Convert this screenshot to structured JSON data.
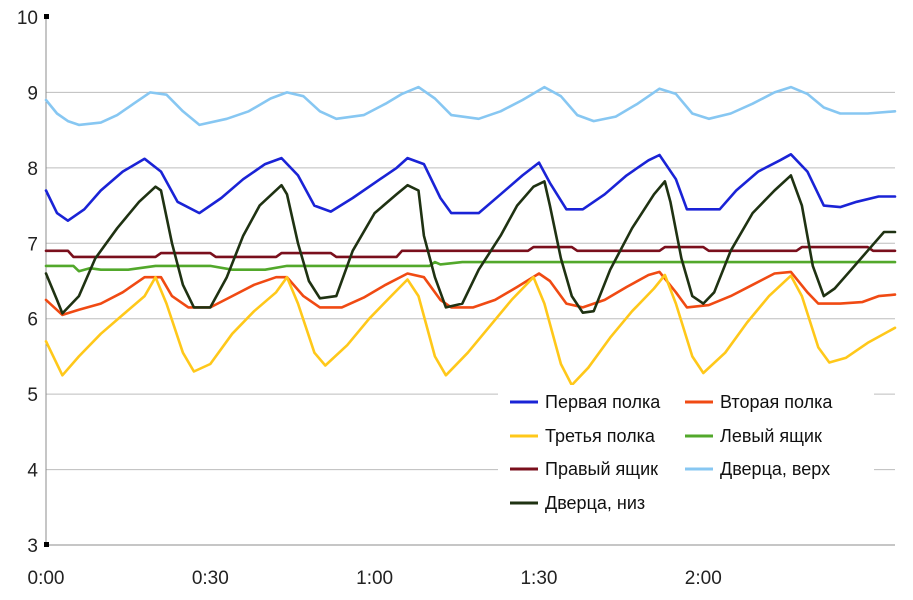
{
  "chart_data": {
    "type": "line",
    "title": "",
    "xlabel": "",
    "ylabel": "",
    "ylim": [
      3,
      10
    ],
    "y_ticks": [
      "3",
      "4",
      "5",
      "6",
      "7",
      "8",
      "9",
      "10"
    ],
    "xlim_minutes": [
      0,
      155
    ],
    "x_ticks": [
      {
        "label": "0:00",
        "minutes": 0
      },
      {
        "label": "0:30",
        "minutes": 30
      },
      {
        "label": "1:00",
        "minutes": 60
      },
      {
        "label": "1:30",
        "minutes": 90
      },
      {
        "label": "2:00",
        "minutes": 120
      }
    ],
    "grid": "horizontal",
    "legend_position": "bottom-right",
    "series": [
      {
        "name": "Первая полка",
        "color": "#1a23d6",
        "points": [
          [
            0,
            7.7
          ],
          [
            2,
            7.4
          ],
          [
            4,
            7.3
          ],
          [
            7,
            7.45
          ],
          [
            10,
            7.7
          ],
          [
            14,
            7.95
          ],
          [
            18,
            8.12
          ],
          [
            21,
            7.95
          ],
          [
            24,
            7.55
          ],
          [
            28,
            7.4
          ],
          [
            32,
            7.6
          ],
          [
            36,
            7.85
          ],
          [
            40,
            8.05
          ],
          [
            43,
            8.13
          ],
          [
            46,
            7.9
          ],
          [
            49,
            7.5
          ],
          [
            52,
            7.42
          ],
          [
            56,
            7.6
          ],
          [
            60,
            7.8
          ],
          [
            64,
            8.0
          ],
          [
            66,
            8.13
          ],
          [
            69,
            8.05
          ],
          [
            72,
            7.6
          ],
          [
            74,
            7.4
          ],
          [
            79,
            7.4
          ],
          [
            83,
            7.65
          ],
          [
            87,
            7.9
          ],
          [
            90,
            8.07
          ],
          [
            92,
            7.8
          ],
          [
            95,
            7.45
          ],
          [
            98,
            7.45
          ],
          [
            102,
            7.65
          ],
          [
            106,
            7.9
          ],
          [
            110,
            8.1
          ],
          [
            112,
            8.17
          ],
          [
            115,
            7.85
          ],
          [
            117,
            7.45
          ],
          [
            123,
            7.45
          ],
          [
            126,
            7.7
          ],
          [
            130,
            7.95
          ],
          [
            134,
            8.1
          ],
          [
            136,
            8.18
          ],
          [
            139,
            7.95
          ],
          [
            142,
            7.5
          ],
          [
            145,
            7.48
          ],
          [
            148,
            7.55
          ],
          [
            152,
            7.62
          ],
          [
            155,
            7.62
          ]
        ]
      },
      {
        "name": "Вторая полка",
        "color": "#f04a13",
        "points": [
          [
            0,
            6.25
          ],
          [
            3,
            6.05
          ],
          [
            6,
            6.12
          ],
          [
            10,
            6.2
          ],
          [
            14,
            6.35
          ],
          [
            18,
            6.55
          ],
          [
            21,
            6.55
          ],
          [
            23,
            6.3
          ],
          [
            26,
            6.15
          ],
          [
            30,
            6.15
          ],
          [
            34,
            6.3
          ],
          [
            38,
            6.45
          ],
          [
            42,
            6.55
          ],
          [
            44,
            6.55
          ],
          [
            47,
            6.3
          ],
          [
            50,
            6.15
          ],
          [
            54,
            6.15
          ],
          [
            58,
            6.28
          ],
          [
            62,
            6.45
          ],
          [
            66,
            6.6
          ],
          [
            69,
            6.55
          ],
          [
            72,
            6.25
          ],
          [
            74,
            6.15
          ],
          [
            78,
            6.15
          ],
          [
            82,
            6.25
          ],
          [
            86,
            6.42
          ],
          [
            90,
            6.6
          ],
          [
            92,
            6.5
          ],
          [
            95,
            6.2
          ],
          [
            98,
            6.15
          ],
          [
            102,
            6.25
          ],
          [
            106,
            6.42
          ],
          [
            110,
            6.58
          ],
          [
            112,
            6.62
          ],
          [
            115,
            6.35
          ],
          [
            117,
            6.15
          ],
          [
            121,
            6.18
          ],
          [
            125,
            6.3
          ],
          [
            129,
            6.45
          ],
          [
            133,
            6.6
          ],
          [
            136,
            6.62
          ],
          [
            139,
            6.35
          ],
          [
            141,
            6.2
          ],
          [
            145,
            6.2
          ],
          [
            149,
            6.22
          ],
          [
            152,
            6.3
          ],
          [
            155,
            6.32
          ]
        ]
      },
      {
        "name": "Третья полка",
        "color": "#ffc81a",
        "points": [
          [
            0,
            5.7
          ],
          [
            3,
            5.25
          ],
          [
            6,
            5.5
          ],
          [
            10,
            5.8
          ],
          [
            14,
            6.05
          ],
          [
            18,
            6.3
          ],
          [
            20,
            6.55
          ],
          [
            22,
            6.2
          ],
          [
            25,
            5.55
          ],
          [
            27,
            5.3
          ],
          [
            30,
            5.4
          ],
          [
            34,
            5.8
          ],
          [
            38,
            6.1
          ],
          [
            42,
            6.35
          ],
          [
            44,
            6.55
          ],
          [
            46,
            6.2
          ],
          [
            49,
            5.55
          ],
          [
            51,
            5.38
          ],
          [
            55,
            5.65
          ],
          [
            59,
            6.0
          ],
          [
            63,
            6.3
          ],
          [
            66,
            6.52
          ],
          [
            68,
            6.3
          ],
          [
            71,
            5.5
          ],
          [
            73,
            5.25
          ],
          [
            77,
            5.55
          ],
          [
            81,
            5.9
          ],
          [
            85,
            6.25
          ],
          [
            89,
            6.55
          ],
          [
            91,
            6.2
          ],
          [
            94,
            5.4
          ],
          [
            96,
            5.12
          ],
          [
            99,
            5.35
          ],
          [
            103,
            5.75
          ],
          [
            107,
            6.1
          ],
          [
            111,
            6.4
          ],
          [
            113,
            6.58
          ],
          [
            115,
            6.2
          ],
          [
            118,
            5.5
          ],
          [
            120,
            5.28
          ],
          [
            124,
            5.55
          ],
          [
            128,
            5.95
          ],
          [
            132,
            6.3
          ],
          [
            136,
            6.57
          ],
          [
            138,
            6.3
          ],
          [
            141,
            5.62
          ],
          [
            143,
            5.42
          ],
          [
            146,
            5.48
          ],
          [
            150,
            5.68
          ],
          [
            155,
            5.88
          ]
        ]
      },
      {
        "name": "Левый ящик",
        "color": "#52a82b",
        "points": [
          [
            0,
            6.7
          ],
          [
            5,
            6.7
          ],
          [
            6,
            6.63
          ],
          [
            8,
            6.67
          ],
          [
            10,
            6.65
          ],
          [
            15,
            6.65
          ],
          [
            20,
            6.7
          ],
          [
            30,
            6.7
          ],
          [
            34,
            6.65
          ],
          [
            40,
            6.65
          ],
          [
            44,
            6.7
          ],
          [
            60,
            6.7
          ],
          [
            70,
            6.7
          ],
          [
            71,
            6.75
          ],
          [
            72,
            6.72
          ],
          [
            76,
            6.75
          ],
          [
            90,
            6.75
          ],
          [
            96,
            6.75
          ],
          [
            110,
            6.75
          ],
          [
            126,
            6.75
          ],
          [
            140,
            6.75
          ],
          [
            155,
            6.75
          ]
        ]
      },
      {
        "name": "Правый ящик",
        "color": "#7a0f1c",
        "points": [
          [
            0,
            6.9
          ],
          [
            4,
            6.9
          ],
          [
            5,
            6.82
          ],
          [
            20,
            6.82
          ],
          [
            21,
            6.87
          ],
          [
            30,
            6.87
          ],
          [
            31,
            6.82
          ],
          [
            42,
            6.82
          ],
          [
            43,
            6.87
          ],
          [
            52,
            6.87
          ],
          [
            53,
            6.82
          ],
          [
            64,
            6.82
          ],
          [
            65,
            6.9
          ],
          [
            88,
            6.9
          ],
          [
            89,
            6.95
          ],
          [
            96,
            6.95
          ],
          [
            97,
            6.9
          ],
          [
            112,
            6.9
          ],
          [
            113,
            6.95
          ],
          [
            120,
            6.95
          ],
          [
            121,
            6.9
          ],
          [
            137,
            6.9
          ],
          [
            138,
            6.95
          ],
          [
            150,
            6.95
          ],
          [
            151,
            6.9
          ],
          [
            155,
            6.9
          ]
        ]
      },
      {
        "name": "Дверца, верх",
        "color": "#87c7f2",
        "points": [
          [
            0,
            8.9
          ],
          [
            2,
            8.72
          ],
          [
            4,
            8.62
          ],
          [
            6,
            8.57
          ],
          [
            10,
            8.6
          ],
          [
            13,
            8.7
          ],
          [
            16,
            8.85
          ],
          [
            19,
            9.0
          ],
          [
            22,
            8.97
          ],
          [
            25,
            8.75
          ],
          [
            28,
            8.57
          ],
          [
            33,
            8.65
          ],
          [
            37,
            8.75
          ],
          [
            41,
            8.92
          ],
          [
            44,
            9.0
          ],
          [
            47,
            8.95
          ],
          [
            50,
            8.75
          ],
          [
            53,
            8.65
          ],
          [
            58,
            8.7
          ],
          [
            62,
            8.85
          ],
          [
            65,
            8.98
          ],
          [
            68,
            9.07
          ],
          [
            71,
            8.92
          ],
          [
            74,
            8.7
          ],
          [
            79,
            8.65
          ],
          [
            83,
            8.75
          ],
          [
            87,
            8.9
          ],
          [
            91,
            9.07
          ],
          [
            94,
            8.95
          ],
          [
            97,
            8.7
          ],
          [
            100,
            8.62
          ],
          [
            104,
            8.68
          ],
          [
            108,
            8.85
          ],
          [
            112,
            9.05
          ],
          [
            115,
            8.98
          ],
          [
            118,
            8.72
          ],
          [
            121,
            8.65
          ],
          [
            125,
            8.72
          ],
          [
            129,
            8.85
          ],
          [
            133,
            9.0
          ],
          [
            136,
            9.07
          ],
          [
            139,
            8.98
          ],
          [
            142,
            8.8
          ],
          [
            145,
            8.72
          ],
          [
            150,
            8.72
          ],
          [
            155,
            8.75
          ]
        ]
      },
      {
        "name": "Дверца, низ",
        "color": "#1f3212",
        "points": [
          [
            0,
            6.6
          ],
          [
            2,
            6.25
          ],
          [
            3,
            6.07
          ],
          [
            6,
            6.3
          ],
          [
            9,
            6.8
          ],
          [
            13,
            7.2
          ],
          [
            17,
            7.55
          ],
          [
            20,
            7.75
          ],
          [
            21,
            7.7
          ],
          [
            23,
            7.0
          ],
          [
            25,
            6.45
          ],
          [
            27,
            6.15
          ],
          [
            30,
            6.15
          ],
          [
            33,
            6.55
          ],
          [
            36,
            7.1
          ],
          [
            39,
            7.5
          ],
          [
            43,
            7.77
          ],
          [
            44,
            7.65
          ],
          [
            46,
            7.0
          ],
          [
            48,
            6.5
          ],
          [
            50,
            6.27
          ],
          [
            53,
            6.3
          ],
          [
            56,
            6.9
          ],
          [
            60,
            7.4
          ],
          [
            64,
            7.65
          ],
          [
            66,
            7.77
          ],
          [
            68,
            7.7
          ],
          [
            69,
            7.1
          ],
          [
            71,
            6.55
          ],
          [
            73,
            6.15
          ],
          [
            76,
            6.2
          ],
          [
            79,
            6.65
          ],
          [
            83,
            7.1
          ],
          [
            86,
            7.5
          ],
          [
            89,
            7.75
          ],
          [
            91,
            7.82
          ],
          [
            92,
            7.5
          ],
          [
            94,
            6.8
          ],
          [
            96,
            6.3
          ],
          [
            98,
            6.08
          ],
          [
            100,
            6.1
          ],
          [
            103,
            6.65
          ],
          [
            107,
            7.2
          ],
          [
            111,
            7.65
          ],
          [
            113,
            7.82
          ],
          [
            114,
            7.55
          ],
          [
            116,
            6.8
          ],
          [
            118,
            6.3
          ],
          [
            120,
            6.2
          ],
          [
            122,
            6.35
          ],
          [
            125,
            6.9
          ],
          [
            129,
            7.4
          ],
          [
            133,
            7.7
          ],
          [
            136,
            7.9
          ],
          [
            138,
            7.5
          ],
          [
            140,
            6.7
          ],
          [
            142,
            6.3
          ],
          [
            144,
            6.4
          ],
          [
            147,
            6.65
          ],
          [
            150,
            6.9
          ],
          [
            153,
            7.15
          ],
          [
            155,
            7.15
          ]
        ]
      }
    ]
  }
}
